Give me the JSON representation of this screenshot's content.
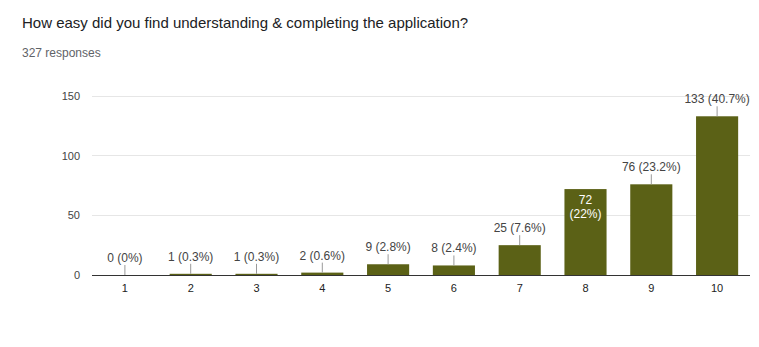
{
  "chart_data": {
    "type": "bar",
    "title": "How easy did you find understanding & completing the application?",
    "subtitle": "327 responses",
    "categories": [
      "1",
      "2",
      "3",
      "4",
      "5",
      "6",
      "7",
      "8",
      "9",
      "10"
    ],
    "values": [
      0,
      1,
      1,
      2,
      9,
      8,
      25,
      72,
      76,
      133
    ],
    "value_labels": [
      "0 (0%)",
      "1 (0.3%)",
      "1 (0.3%)",
      "2 (0.6%)",
      "9 (2.8%)",
      "8 (2.4%)",
      "25 (7.6%)",
      "72 (22%)",
      "76 (23.2%)",
      "133 (40.7%)"
    ],
    "color": "#5b6116",
    "ylim": [
      0,
      150
    ],
    "yticks": [
      0,
      50,
      100,
      150
    ],
    "grid": true,
    "data_labels": true
  }
}
